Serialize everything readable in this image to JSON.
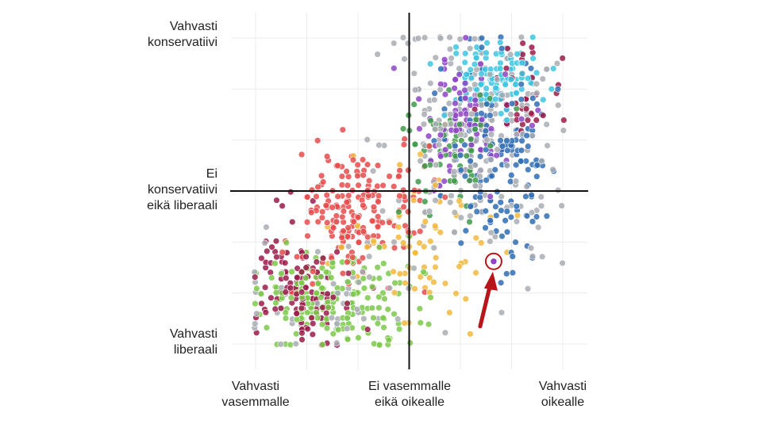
{
  "chart_data": {
    "type": "scatter",
    "title": "",
    "xlabel": "",
    "ylabel": "",
    "xlim": [
      -1,
      1
    ],
    "ylim": [
      -1,
      1
    ],
    "grid": true,
    "x_tick_labels": [
      {
        "value": -1,
        "lines": [
          "Vahvasti",
          "vasemmalle"
        ]
      },
      {
        "value": 0,
        "lines": [
          "Ei vasemmalle",
          "eikä oikealle"
        ]
      },
      {
        "value": 1,
        "lines": [
          "Vahvasti",
          "oikealle"
        ]
      }
    ],
    "y_tick_labels": [
      {
        "value": 1,
        "lines": [
          "Vahvasti",
          "konservatiivi"
        ]
      },
      {
        "value": 0,
        "lines": [
          "Ei",
          "konservatiivi",
          "eikä liberaali"
        ]
      },
      {
        "value": -1,
        "lines": [
          "Vahvasti",
          "liberaali"
        ]
      }
    ],
    "palette": {
      "dark_red": "#9b1b4a",
      "red": "#e74c4c",
      "green": "#7cc94a",
      "dark_green": "#3f9a4a",
      "yellow": "#f2b83c",
      "blue": "#2f6db5",
      "purple": "#8e44c6",
      "cyan": "#3cc6e0",
      "grey": "#a9adb3"
    },
    "clusters": [
      {
        "color": "cyan",
        "cx": 0.55,
        "cy": 0.75,
        "sx": 0.16,
        "sy": 0.11,
        "n": 110
      },
      {
        "color": "dark_red",
        "cx": 0.72,
        "cy": 0.65,
        "sx": 0.12,
        "sy": 0.16,
        "n": 35
      },
      {
        "color": "blue",
        "cx": 0.58,
        "cy": 0.2,
        "sx": 0.17,
        "sy": 0.32,
        "n": 150
      },
      {
        "color": "purple",
        "cx": 0.35,
        "cy": 0.42,
        "sx": 0.17,
        "sy": 0.22,
        "n": 100
      },
      {
        "color": "dark_green",
        "cx": 0.3,
        "cy": 0.28,
        "sx": 0.17,
        "sy": 0.2,
        "n": 70
      },
      {
        "color": "grey",
        "cx": 0.4,
        "cy": 0.35,
        "sx": 0.3,
        "sy": 0.4,
        "n": 220
      },
      {
        "color": "red",
        "cx": -0.35,
        "cy": -0.15,
        "sx": 0.2,
        "sy": 0.22,
        "n": 190
      },
      {
        "color": "dark_red",
        "cx": -0.72,
        "cy": -0.62,
        "sx": 0.15,
        "sy": 0.2,
        "n": 120
      },
      {
        "color": "green",
        "cx": -0.45,
        "cy": -0.72,
        "sx": 0.26,
        "sy": 0.16,
        "n": 190
      },
      {
        "color": "yellow",
        "cx": 0.1,
        "cy": -0.35,
        "sx": 0.28,
        "sy": 0.28,
        "n": 70
      },
      {
        "color": "grey",
        "cx": -0.55,
        "cy": -0.7,
        "sx": 0.3,
        "sy": 0.2,
        "n": 60
      }
    ],
    "highlight": {
      "x": 0.55,
      "y": -0.46,
      "color": "#b8151b"
    },
    "axes_lines_color": "#111111"
  }
}
